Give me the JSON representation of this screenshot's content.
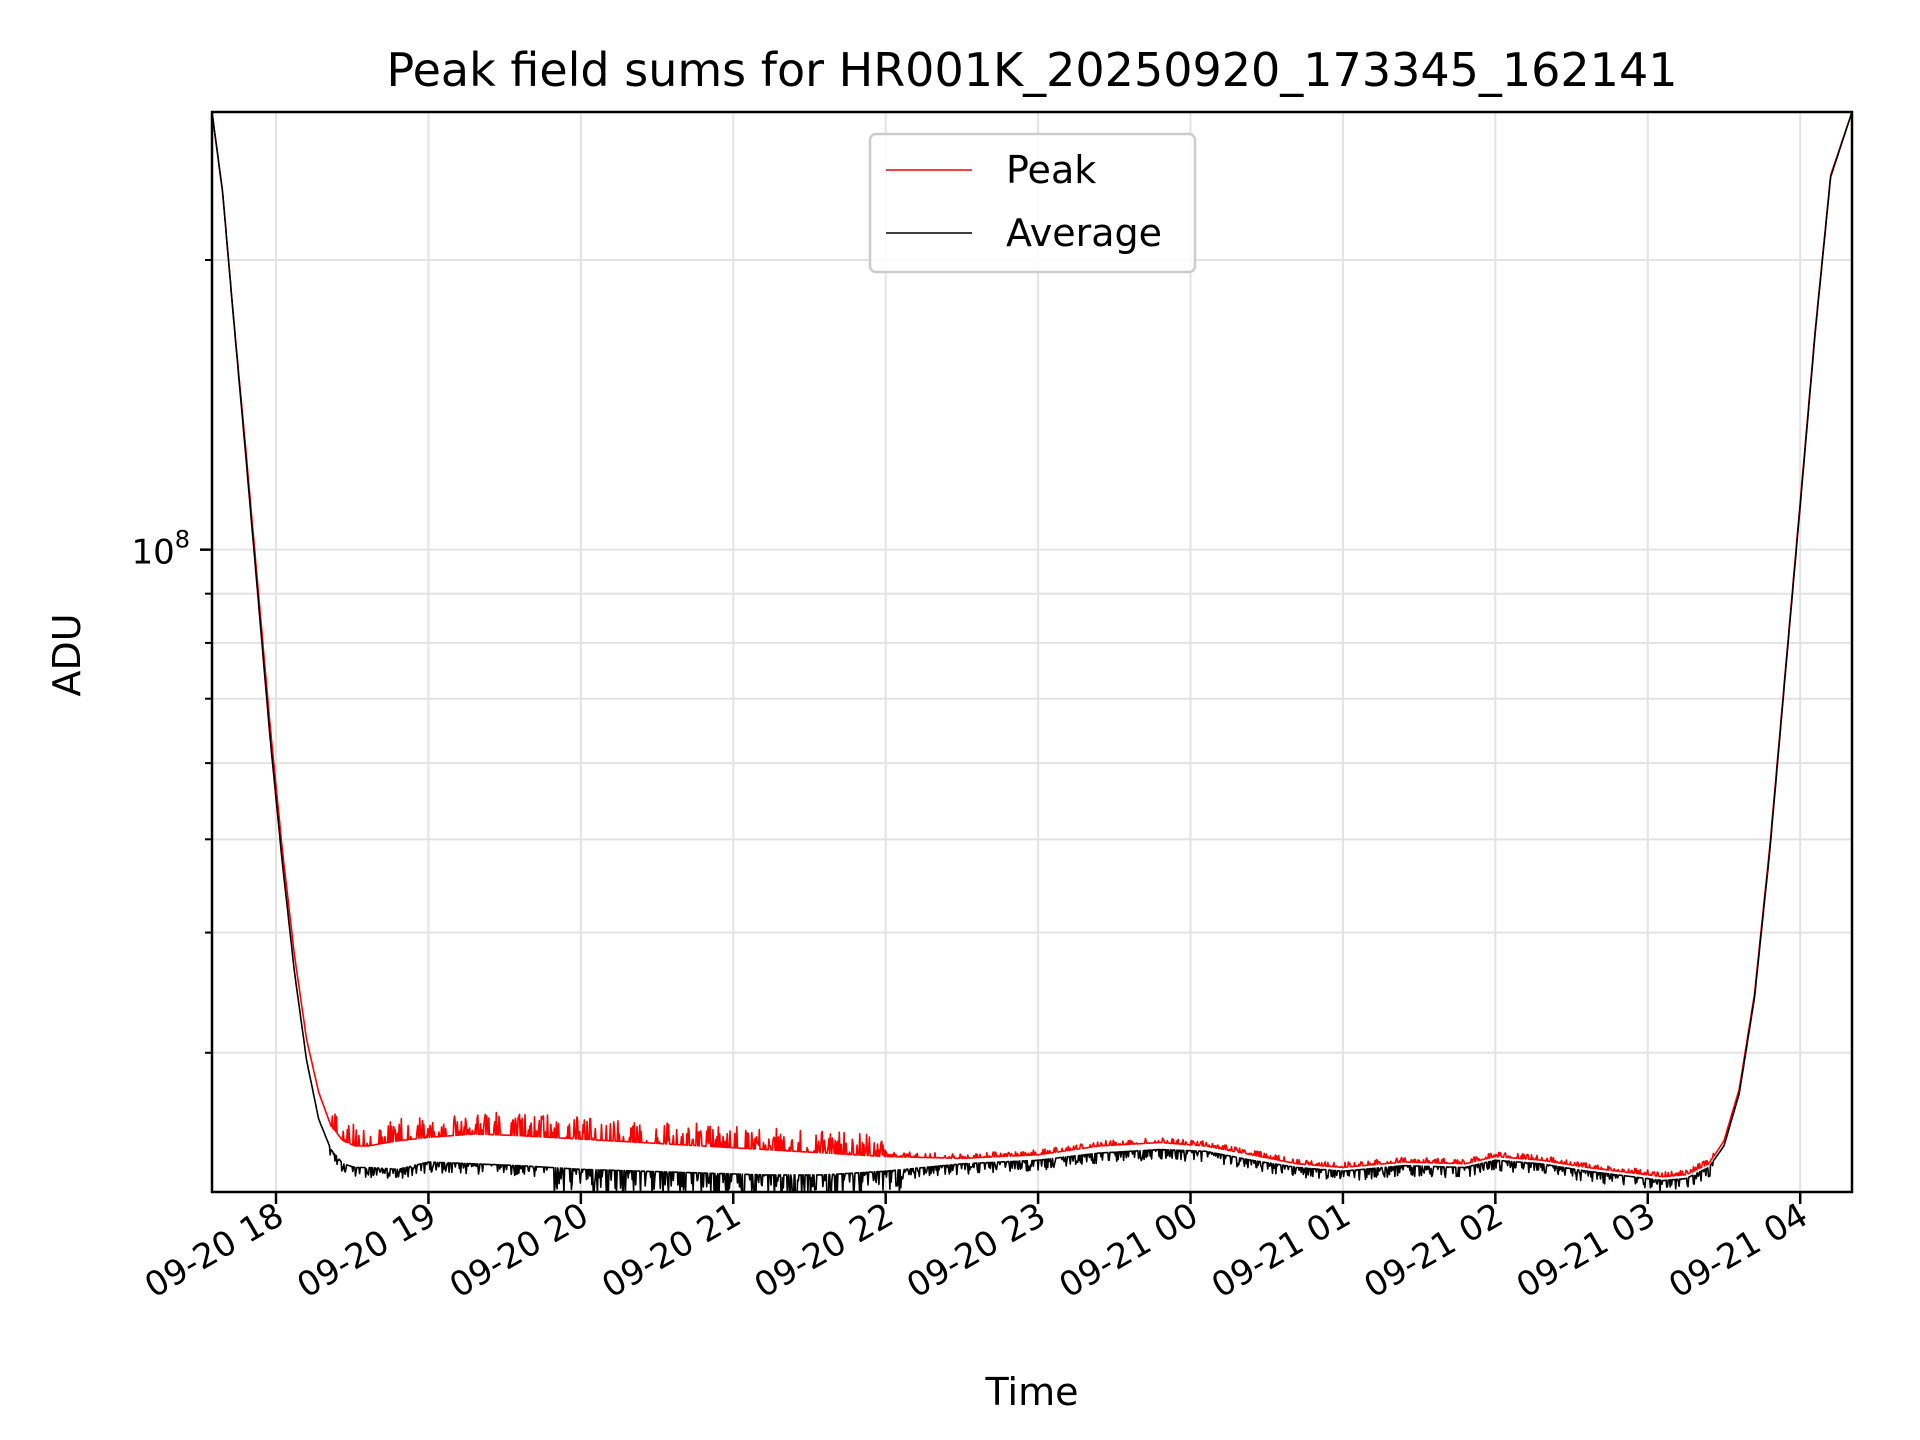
{
  "chart_data": {
    "type": "line",
    "title": "Peak field sums for HR001K_20250920_173345_162141",
    "xlabel": "Time",
    "ylabel": "ADU",
    "yscale": "log",
    "ylim": [
      21500000,
      285000000
    ],
    "xlim_hours": [
      17.58,
      28.34
    ],
    "x_ticks": [
      {
        "label": "09-20 18",
        "hour": 18
      },
      {
        "label": "09-20 19",
        "hour": 19
      },
      {
        "label": "09-20 20",
        "hour": 20
      },
      {
        "label": "09-20 21",
        "hour": 21
      },
      {
        "label": "09-20 22",
        "hour": 22
      },
      {
        "label": "09-20 23",
        "hour": 23
      },
      {
        "label": "09-21 00",
        "hour": 24
      },
      {
        "label": "09-21 01",
        "hour": 25
      },
      {
        "label": "09-21 02",
        "hour": 26
      },
      {
        "label": "09-21 03",
        "hour": 27
      },
      {
        "label": "09-21 04",
        "hour": 28
      }
    ],
    "y_major_tick": {
      "base": "10",
      "exp": "8",
      "value": 100000000
    },
    "y_minor_ticks": [
      30000000,
      40000000,
      50000000,
      60000000,
      70000000,
      80000000,
      90000000,
      200000000
    ],
    "grid": true,
    "legend": {
      "position": "top-center",
      "entries": [
        "Peak",
        "Average"
      ]
    },
    "series": [
      {
        "name": "Peak",
        "color": "#ff0000",
        "hours": [
          17.58,
          17.65,
          17.72,
          17.8,
          17.88,
          17.96,
          18.04,
          18.12,
          18.2,
          18.28,
          18.36,
          18.44,
          18.52,
          18.6,
          18.8,
          19.0,
          19.3,
          19.6,
          20.0,
          20.4,
          20.8,
          21.2,
          21.6,
          22.0,
          22.5,
          23.0,
          23.4,
          23.8,
          24.1,
          24.4,
          24.7,
          25.0,
          25.4,
          25.8,
          26.0,
          26.3,
          26.6,
          26.9,
          27.1,
          27.25,
          27.4,
          27.5,
          27.6,
          27.7,
          27.8,
          27.9,
          28.0,
          28.1,
          28.2,
          28.34
        ],
        "values": [
          285000000,
          235000000,
          175000000,
          128000000,
          92000000,
          66000000,
          49000000,
          38000000,
          31000000,
          27300000,
          25200000,
          24300000,
          24000000,
          24000000,
          24300000,
          24500000,
          24700000,
          24600000,
          24400000,
          24200000,
          24000000,
          23800000,
          23600000,
          23400000,
          23300000,
          23500000,
          24000000,
          24200000,
          24000000,
          23500000,
          23000000,
          22800000,
          23100000,
          23000000,
          23400000,
          23200000,
          22800000,
          22500000,
          22300000,
          22400000,
          23000000,
          24300000,
          27500000,
          34500000,
          49000000,
          74000000,
          112000000,
          170000000,
          245000000,
          285000000
        ]
      },
      {
        "name": "Average",
        "color": "#000000",
        "hours": [
          17.58,
          17.65,
          17.72,
          17.8,
          17.88,
          17.96,
          18.04,
          18.12,
          18.2,
          18.28,
          18.36,
          18.44,
          18.52,
          18.6,
          18.8,
          19.0,
          19.3,
          19.6,
          20.0,
          20.4,
          20.8,
          21.2,
          21.6,
          22.0,
          22.5,
          23.0,
          23.4,
          23.8,
          24.1,
          24.4,
          24.7,
          25.0,
          25.4,
          25.8,
          26.0,
          26.3,
          26.6,
          26.9,
          27.1,
          27.25,
          27.4,
          27.5,
          27.6,
          27.7,
          27.8,
          27.9,
          28.0,
          28.1,
          28.2,
          28.34
        ],
        "values": [
          285000000,
          235000000,
          175000000,
          126000000,
          90000000,
          64000000,
          47500000,
          36500000,
          29500000,
          25600000,
          23800000,
          23000000,
          22800000,
          22800000,
          22700000,
          23100000,
          23000000,
          22900000,
          22700000,
          22600000,
          22500000,
          22400000,
          22400000,
          22600000,
          23000000,
          23200000,
          23600000,
          23800000,
          23700000,
          23200000,
          22800000,
          22600000,
          22900000,
          22800000,
          23200000,
          23000000,
          22600000,
          22300000,
          22100000,
          22200000,
          22800000,
          24000000,
          27200000,
          34200000,
          48500000,
          73500000,
          111000000,
          169000000,
          244000000,
          285000000
        ]
      }
    ]
  }
}
